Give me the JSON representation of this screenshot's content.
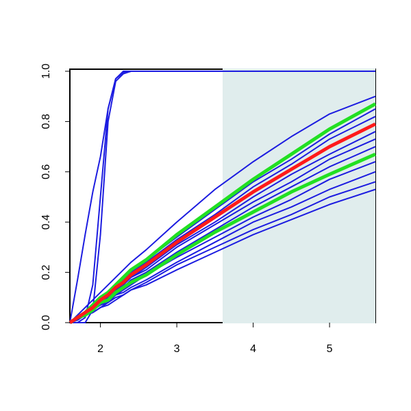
{
  "chart_data": {
    "type": "line",
    "x": [
      1.6,
      1.7,
      1.8,
      1.9,
      2.0,
      2.1,
      2.2,
      2.3,
      2.4,
      2.6,
      3.0,
      3.5,
      4.0,
      4.5,
      5.0,
      5.6
    ],
    "series": [
      {
        "color": "#1c1ce0",
        "values": [
          0,
          0.17,
          0.35,
          0.52,
          0.66,
          0.85,
          0.97,
          1.0,
          1.0,
          1.0,
          1.0,
          1.0,
          1.0,
          1.0,
          1.0,
          1.0
        ]
      },
      {
        "color": "#1c1ce0",
        "values": [
          0,
          0,
          0.02,
          0.15,
          0.5,
          0.85,
          0.97,
          0.995,
          1.0,
          1.0,
          1.0,
          1.0,
          1.0,
          1.0,
          1.0,
          1.0
        ]
      },
      {
        "color": "#1c1ce0",
        "values": [
          0,
          0,
          0,
          0.05,
          0.35,
          0.8,
          0.96,
          0.99,
          1.0,
          1.0,
          1.0,
          1.0,
          1.0,
          1.0,
          1.0,
          1.0
        ]
      },
      {
        "color": "#1c1ce0",
        "values": [
          0,
          0.03,
          0.06,
          0.09,
          0.12,
          0.15,
          0.18,
          0.21,
          0.24,
          0.29,
          0.4,
          0.53,
          0.64,
          0.74,
          0.83,
          0.9
        ]
      },
      {
        "color": "#1c1ce0",
        "values": [
          0,
          0.02,
          0.04,
          0.06,
          0.1,
          0.12,
          0.15,
          0.17,
          0.2,
          0.25,
          0.34,
          0.45,
          0.56,
          0.65,
          0.75,
          0.85
        ]
      },
      {
        "color": "#1c1ce0",
        "values": [
          0,
          0.02,
          0.04,
          0.06,
          0.09,
          0.11,
          0.15,
          0.17,
          0.2,
          0.24,
          0.33,
          0.43,
          0.54,
          0.63,
          0.73,
          0.82
        ]
      },
      {
        "color": "#1c1ce0",
        "values": [
          0,
          0.02,
          0.04,
          0.06,
          0.09,
          0.11,
          0.13,
          0.15,
          0.18,
          0.22,
          0.31,
          0.4,
          0.5,
          0.59,
          0.67,
          0.76
        ]
      },
      {
        "color": "#1c1ce0",
        "values": [
          0,
          0.02,
          0.04,
          0.06,
          0.08,
          0.1,
          0.13,
          0.15,
          0.18,
          0.21,
          0.3,
          0.39,
          0.48,
          0.56,
          0.65,
          0.73
        ]
      },
      {
        "color": "#1c1ce0",
        "values": [
          0,
          0.02,
          0.04,
          0.05,
          0.08,
          0.1,
          0.12,
          0.14,
          0.17,
          0.2,
          0.28,
          0.37,
          0.46,
          0.54,
          0.62,
          0.7
        ]
      },
      {
        "color": "#1c1ce0",
        "values": [
          0,
          0.02,
          0.03,
          0.05,
          0.07,
          0.09,
          0.11,
          0.13,
          0.15,
          0.19,
          0.26,
          0.34,
          0.42,
          0.49,
          0.57,
          0.64
        ]
      },
      {
        "color": "#1c1ce0",
        "values": [
          0,
          0.02,
          0.03,
          0.05,
          0.07,
          0.08,
          0.11,
          0.12,
          0.14,
          0.17,
          0.24,
          0.32,
          0.4,
          0.46,
          0.53,
          0.6
        ]
      },
      {
        "color": "#1c1ce0",
        "values": [
          0,
          0.01,
          0.03,
          0.04,
          0.06,
          0.08,
          0.1,
          0.11,
          0.13,
          0.16,
          0.23,
          0.3,
          0.37,
          0.43,
          0.5,
          0.56
        ]
      },
      {
        "color": "#1c1ce0",
        "values": [
          0,
          0.01,
          0.03,
          0.04,
          0.06,
          0.07,
          0.09,
          0.11,
          0.13,
          0.15,
          0.21,
          0.28,
          0.35,
          0.41,
          0.47,
          0.53
        ]
      },
      {
        "color": "#22e022",
        "values": [
          0,
          0.02,
          0.04,
          0.07,
          0.1,
          0.12,
          0.15,
          0.18,
          0.21,
          0.25,
          0.35,
          0.46,
          0.57,
          0.67,
          0.77,
          0.87
        ]
      },
      {
        "color": "#22e022",
        "values": [
          0,
          0.02,
          0.03,
          0.05,
          0.08,
          0.09,
          0.12,
          0.14,
          0.16,
          0.19,
          0.27,
          0.36,
          0.44,
          0.52,
          0.59,
          0.67
        ]
      },
      {
        "color": "#ff1a1a",
        "values": [
          0,
          0.02,
          0.04,
          0.06,
          0.09,
          0.11,
          0.14,
          0.16,
          0.19,
          0.23,
          0.32,
          0.42,
          0.52,
          0.61,
          0.7,
          0.79
        ]
      }
    ],
    "shade_x": [
      3.6,
      5.6
    ],
    "shade_color": "#e0eded",
    "xlim": [
      1.6,
      5.6
    ],
    "ylim": [
      0,
      1
    ],
    "xticks": [
      2,
      3,
      4,
      5
    ],
    "yticks": [
      {
        "value": 0,
        "label": "0.0"
      },
      0.2,
      0.4,
      0.6,
      0.8,
      {
        "value": 1,
        "label": "1.0"
      }
    ]
  }
}
